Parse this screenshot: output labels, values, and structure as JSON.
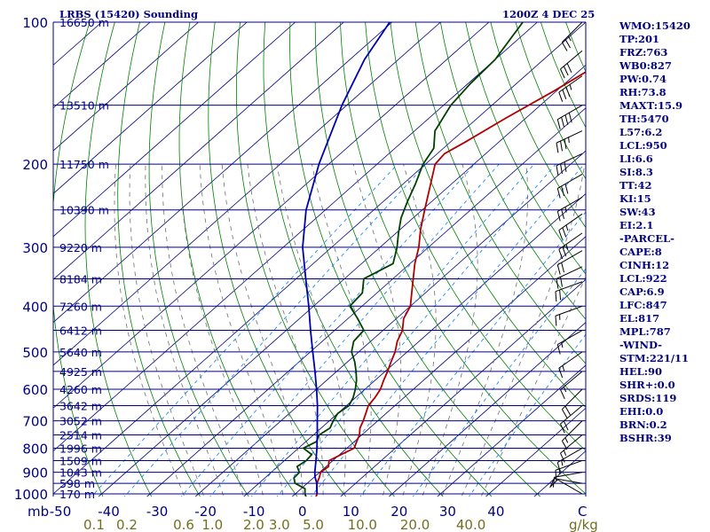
{
  "chart_data": {
    "type": "line",
    "title": "LRBS (15420) Sounding",
    "timestamp": "1200Z  4 DEC 25",
    "pressure_axis": {
      "unit": "mb",
      "levels": [
        100,
        200,
        300,
        400,
        500,
        600,
        700,
        800,
        900,
        1000
      ],
      "labels": [
        "100",
        "200",
        "300",
        "400",
        "500",
        "600",
        "700",
        "800",
        "900",
        "1000"
      ]
    },
    "temperature_axis": {
      "unit": "C",
      "ticks": [
        -50,
        -40,
        -30,
        -20,
        -10,
        0,
        10,
        20,
        30,
        40
      ],
      "labels": [
        "-50",
        "-40",
        "-30",
        "-20",
        "-10",
        "0",
        "10",
        "20",
        "30",
        "40"
      ]
    },
    "mixing_ratio_axis": {
      "unit": "g/kg",
      "values": [
        0.1,
        0.2,
        0.6,
        1.0,
        2.0,
        3.0,
        5.0,
        10.0,
        20.0,
        40.0
      ],
      "labels": [
        "0.1",
        "0.2",
        "0.6",
        "1.0",
        "2.0",
        "3.0",
        "5.0",
        "10.0",
        "20.0",
        "40.0"
      ]
    },
    "height_labels": [
      {
        "p": 100,
        "label": "16650 m"
      },
      {
        "p": 150,
        "label": "13510 m"
      },
      {
        "p": 200,
        "label": "11750 m"
      },
      {
        "p": 250,
        "label": "10390 m"
      },
      {
        "p": 300,
        "label": "9220 m"
      },
      {
        "p": 350,
        "label": "8184 m"
      },
      {
        "p": 400,
        "label": "7260 m"
      },
      {
        "p": 450,
        "label": "6412 m"
      },
      {
        "p": 500,
        "label": "5640 m"
      },
      {
        "p": 550,
        "label": "4925 m"
      },
      {
        "p": 600,
        "label": "4260 m"
      },
      {
        "p": 650,
        "label": "3642 m"
      },
      {
        "p": 700,
        "label": "3052 m"
      },
      {
        "p": 750,
        "label": "2514 m"
      },
      {
        "p": 800,
        "label": "1996 m"
      },
      {
        "p": 850,
        "label": "1509 m"
      },
      {
        "p": 900,
        "label": "1043 m"
      },
      {
        "p": 950,
        "label": "598 m"
      },
      {
        "p": 1000,
        "label": "170 m"
      }
    ],
    "series": [
      {
        "name": "temperature",
        "points": [
          [
            1016,
            5.0
          ],
          [
            1000,
            4.5
          ],
          [
            975,
            3.2
          ],
          [
            950,
            2.0
          ],
          [
            925,
            1.2
          ],
          [
            900,
            0.2
          ],
          [
            875,
            0.5
          ],
          [
            850,
            -0.8
          ],
          [
            825,
            0.3
          ],
          [
            800,
            1.5
          ],
          [
            775,
            0.5
          ],
          [
            750,
            -0.5
          ],
          [
            725,
            -2.0
          ],
          [
            700,
            -3.0
          ],
          [
            675,
            -4.2
          ],
          [
            650,
            -5.5
          ],
          [
            625,
            -6.0
          ],
          [
            600,
            -6.8
          ],
          [
            575,
            -8.2
          ],
          [
            550,
            -9.5
          ],
          [
            525,
            -11.0
          ],
          [
            500,
            -12.5
          ],
          [
            475,
            -14.5
          ],
          [
            450,
            -16.0
          ],
          [
            425,
            -18.5
          ],
          [
            400,
            -20.0
          ],
          [
            375,
            -22.8
          ],
          [
            350,
            -25.8
          ],
          [
            325,
            -29.0
          ],
          [
            300,
            -32.0
          ],
          [
            275,
            -35.8
          ],
          [
            250,
            -39.5
          ],
          [
            225,
            -43.5
          ],
          [
            200,
            -48.0
          ],
          [
            190,
            -48.5
          ],
          [
            180,
            -47.0
          ],
          [
            160,
            -44.2
          ],
          [
            140,
            -40.5
          ],
          [
            120,
            -37.0
          ],
          [
            105,
            -32.5
          ],
          [
            100,
            -31.0
          ]
        ]
      },
      {
        "name": "dewpoint",
        "points": [
          [
            1016,
            3.0
          ],
          [
            1000,
            2.0
          ],
          [
            975,
            0.8
          ],
          [
            950,
            -2.5
          ],
          [
            925,
            -4.0
          ],
          [
            900,
            -4.2
          ],
          [
            875,
            -6.0
          ],
          [
            850,
            -5.5
          ],
          [
            825,
            -5.8
          ],
          [
            800,
            -9.0
          ],
          [
            775,
            -7.8
          ],
          [
            750,
            -8.8
          ],
          [
            725,
            -8.2
          ],
          [
            700,
            -9.2
          ],
          [
            675,
            -10.0
          ],
          [
            650,
            -9.5
          ],
          [
            625,
            -10.5
          ],
          [
            600,
            -12.0
          ],
          [
            575,
            -13.8
          ],
          [
            550,
            -16.0
          ],
          [
            525,
            -18.5
          ],
          [
            500,
            -21.5
          ],
          [
            475,
            -23.5
          ],
          [
            450,
            -24.0
          ],
          [
            425,
            -28.0
          ],
          [
            400,
            -32.5
          ],
          [
            375,
            -33.0
          ],
          [
            350,
            -36.0
          ],
          [
            325,
            -33.5
          ],
          [
            300,
            -36.5
          ],
          [
            280,
            -39.5
          ],
          [
            260,
            -42.5
          ],
          [
            240,
            -45.0
          ],
          [
            220,
            -47.5
          ],
          [
            200,
            -50.5
          ],
          [
            185,
            -52.0
          ],
          [
            170,
            -55.8
          ],
          [
            150,
            -58.5
          ],
          [
            135,
            -59.5
          ],
          [
            120,
            -60.0
          ],
          [
            100,
            -63.0
          ]
        ]
      },
      {
        "name": "parcel",
        "points": [
          [
            1000,
            4.5
          ],
          [
            950,
            2.0
          ],
          [
            922,
            0.2
          ],
          [
            900,
            -1.0
          ],
          [
            850,
            -3.5
          ],
          [
            800,
            -6.2
          ],
          [
            750,
            -9.2
          ],
          [
            700,
            -12.5
          ],
          [
            650,
            -16.0
          ],
          [
            600,
            -20.0
          ],
          [
            550,
            -24.5
          ],
          [
            500,
            -29.5
          ],
          [
            450,
            -35.0
          ],
          [
            400,
            -41.0
          ],
          [
            350,
            -48.0
          ],
          [
            300,
            -56.0
          ],
          [
            250,
            -64.0
          ],
          [
            200,
            -72.0
          ],
          [
            150,
            -81.0
          ],
          [
            120,
            -87.0
          ],
          [
            100,
            -90.5
          ]
        ]
      }
    ],
    "colors": {
      "isobar": "#000080",
      "isotherm": "#000080",
      "dry_adiabat": "#008000",
      "moist_adiabat": "#707070",
      "mixing_ratio": "#0080ff",
      "temperature": "#b00000",
      "dewpoint": "#004000",
      "parcel": "#0000b0",
      "barbs": "#000000",
      "labels_blue": "#000080",
      "labels_olive": "#707020"
    },
    "wind_barbs": [
      {
        "p": 100,
        "dir": 225,
        "kt": 25
      },
      {
        "p": 115,
        "dir": 230,
        "kt": 30
      },
      {
        "p": 130,
        "dir": 235,
        "kt": 35
      },
      {
        "p": 150,
        "dir": 240,
        "kt": 40
      },
      {
        "p": 170,
        "dir": 245,
        "kt": 35
      },
      {
        "p": 190,
        "dir": 245,
        "kt": 30
      },
      {
        "p": 210,
        "dir": 240,
        "kt": 30
      },
      {
        "p": 235,
        "dir": 240,
        "kt": 25
      },
      {
        "p": 255,
        "dir": 235,
        "kt": 25
      },
      {
        "p": 280,
        "dir": 235,
        "kt": 25
      },
      {
        "p": 305,
        "dir": 240,
        "kt": 20
      },
      {
        "p": 330,
        "dir": 245,
        "kt": 20
      },
      {
        "p": 355,
        "dir": 250,
        "kt": 20
      },
      {
        "p": 400,
        "dir": 250,
        "kt": 15
      },
      {
        "p": 450,
        "dir": 240,
        "kt": 15
      },
      {
        "p": 500,
        "dir": 235,
        "kt": 15
      },
      {
        "p": 550,
        "dir": 230,
        "kt": 15
      },
      {
        "p": 600,
        "dir": 225,
        "kt": 20
      },
      {
        "p": 650,
        "dir": 230,
        "kt": 20
      },
      {
        "p": 700,
        "dir": 225,
        "kt": 15
      },
      {
        "p": 750,
        "dir": 230,
        "kt": 15
      },
      {
        "p": 800,
        "dir": 240,
        "kt": 15
      },
      {
        "p": 850,
        "dir": 250,
        "kt": 15
      },
      {
        "p": 900,
        "dir": 260,
        "kt": 10
      },
      {
        "p": 950,
        "dir": 280,
        "kt": 10
      },
      {
        "p": 1000,
        "dir": 300,
        "kt": 10
      }
    ]
  },
  "indices": [
    "WMO:15420",
    "TP:201",
    "FRZ:763",
    "WB0:827",
    "PW:0.74",
    "RH:73.8",
    "MAXT:15.9",
    "TH:5470",
    "L57:6.2",
    "LCL:950",
    "LI:6.6",
    "SI:8.3",
    "TT:42",
    "KI:15",
    "SW:43",
    "EI:2.1",
    "-PARCEL-",
    "CAPE:8",
    "CINH:12",
    "LCL:922",
    "CAP:6.9",
    "LFC:847",
    "EL:817",
    "MPL:787",
    "-WIND-",
    "STM:221/11",
    "HEL:90",
    "SHR+:0.0",
    "SRDS:119",
    "EHI:0.0",
    "BRN:0.2",
    "BSHR:39"
  ]
}
